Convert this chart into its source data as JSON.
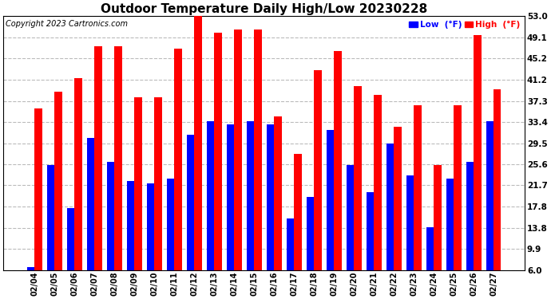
{
  "title": "Outdoor Temperature Daily High/Low 20230228",
  "copyright": "Copyright 2023 Cartronics.com",
  "legend_low": "Low  (°F)",
  "legend_high": "High  (°F)",
  "dates": [
    "02/04",
    "02/05",
    "02/06",
    "02/07",
    "02/08",
    "02/09",
    "02/10",
    "02/11",
    "02/12",
    "02/13",
    "02/14",
    "02/15",
    "02/16",
    "02/17",
    "02/18",
    "02/19",
    "02/20",
    "02/21",
    "02/22",
    "02/23",
    "02/24",
    "02/25",
    "02/26",
    "02/27"
  ],
  "highs": [
    36.0,
    39.0,
    41.5,
    47.5,
    47.5,
    38.0,
    38.0,
    47.0,
    53.0,
    50.0,
    50.5,
    50.5,
    34.5,
    27.5,
    43.0,
    46.5,
    40.0,
    38.5,
    32.5,
    36.5,
    25.5,
    36.5,
    49.5,
    39.5
  ],
  "lows": [
    6.5,
    25.5,
    17.5,
    30.5,
    26.0,
    22.5,
    22.0,
    23.0,
    31.0,
    33.5,
    33.0,
    33.5,
    33.0,
    15.5,
    19.5,
    32.0,
    25.5,
    20.5,
    29.5,
    23.5,
    14.0,
    23.0,
    26.0,
    33.5
  ],
  "ylim_min": 6.0,
  "ylim_max": 53.0,
  "yticks": [
    6.0,
    9.9,
    13.8,
    17.8,
    21.7,
    25.6,
    29.5,
    33.4,
    37.3,
    41.2,
    45.2,
    49.1,
    53.0
  ],
  "high_color": "#ff0000",
  "low_color": "#0000ff",
  "bg_color": "#ffffff",
  "title_fontsize": 11,
  "copyright_fontsize": 7,
  "bar_width": 0.38,
  "grid_color": "#bbbbbb",
  "grid_style": "--"
}
